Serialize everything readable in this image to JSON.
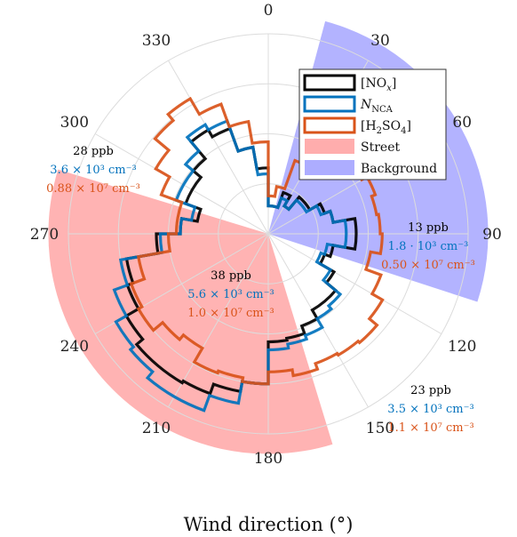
{
  "chart_data": {
    "type": "polar-histogram",
    "title": "",
    "xlabel": "Wind direction (°)",
    "angular_ticks": [
      "0",
      "30",
      "60",
      "90",
      "120",
      "150",
      "180",
      "210",
      "240",
      "270",
      "300",
      "330"
    ],
    "bin_width_deg": 10,
    "bin_centers_deg": [
      5,
      15,
      25,
      35,
      45,
      55,
      65,
      75,
      85,
      95,
      105,
      115,
      125,
      135,
      145,
      155,
      165,
      175,
      185,
      195,
      205,
      215,
      225,
      235,
      245,
      255,
      265,
      275,
      285,
      295,
      305,
      315,
      325,
      335,
      345,
      355
    ],
    "radial_max": 1.0,
    "grid": true,
    "legend_position": "top-right",
    "series": [
      {
        "name": "[NOx]",
        "name_display": "[NO_x]",
        "color": "#000000",
        "values": [
          0.14,
          0.14,
          0.22,
          0.16,
          0.24,
          0.24,
          0.3,
          0.33,
          0.44,
          0.44,
          0.33,
          0.3,
          0.38,
          0.44,
          0.44,
          0.49,
          0.53,
          0.54,
          0.75,
          0.8,
          0.85,
          0.86,
          0.86,
          0.82,
          0.75,
          0.72,
          0.56,
          0.44,
          0.36,
          0.44,
          0.44,
          0.49,
          0.6,
          0.56,
          0.44,
          0.33
        ]
      },
      {
        "name": "NNCA",
        "name_display": "N_NCA",
        "color": "#0072BD",
        "values": [
          0.14,
          0.14,
          0.19,
          0.16,
          0.22,
          0.22,
          0.28,
          0.33,
          0.39,
          0.39,
          0.3,
          0.28,
          0.36,
          0.47,
          0.49,
          0.54,
          0.56,
          0.58,
          0.75,
          0.86,
          0.94,
          0.94,
          0.9,
          0.88,
          0.82,
          0.75,
          0.54,
          0.44,
          0.39,
          0.49,
          0.49,
          0.54,
          0.63,
          0.6,
          0.44,
          0.3
        ]
      },
      {
        "name": "[H2SO4]",
        "name_display": "[H_2SO_4]",
        "color": "#D95319",
        "values": [
          0.19,
          0.24,
          0.39,
          0.43,
          0.52,
          0.54,
          0.57,
          0.55,
          0.56,
          0.57,
          0.52,
          0.6,
          0.66,
          0.71,
          0.7,
          0.69,
          0.72,
          0.69,
          0.75,
          0.73,
          0.74,
          0.66,
          0.69,
          0.75,
          0.73,
          0.66,
          0.5,
          0.46,
          0.46,
          0.57,
          0.65,
          0.74,
          0.78,
          0.69,
          0.57,
          0.46
        ]
      },
      {
        "name": "Street",
        "type": "sector",
        "color": "#FF9999",
        "from_deg": 163,
        "to_deg": 287,
        "radius": 1.1
      },
      {
        "name": "Background",
        "type": "sector",
        "color": "#9999FF",
        "from_deg": 15,
        "to_deg": 108,
        "radius": 1.1
      }
    ],
    "annotations": [
      {
        "id": "a300",
        "lines": [
          {
            "text": "28 ppb",
            "color": "#000000"
          },
          {
            "text": "3.6 × 10³ cm⁻³",
            "color": "#0072BD"
          },
          {
            "text": "0.88 × 10⁷ cm⁻³",
            "color": "#D95319"
          }
        ]
      },
      {
        "id": "a90",
        "lines": [
          {
            "text": "13 ppb",
            "color": "#000000"
          },
          {
            "text": "1.8 · 10³ cm⁻³",
            "color": "#0072BD"
          },
          {
            "text": "0.50 × 10⁷ cm⁻³",
            "color": "#D95319"
          }
        ]
      },
      {
        "id": "a230",
        "lines": [
          {
            "text": "38 ppb",
            "color": "#000000"
          },
          {
            "text": "5.6 × 10³ cm⁻³",
            "color": "#0072BD"
          },
          {
            "text": "1.0 × 10⁷ cm⁻³",
            "color": "#D95319"
          }
        ]
      },
      {
        "id": "a130",
        "lines": [
          {
            "text": "23 ppb",
            "color": "#000000"
          },
          {
            "text": "3.5 × 10³ cm⁻³",
            "color": "#0072BD"
          },
          {
            "text": "1.1 × 10⁷ cm⁻³",
            "color": "#D95319"
          }
        ]
      }
    ]
  }
}
